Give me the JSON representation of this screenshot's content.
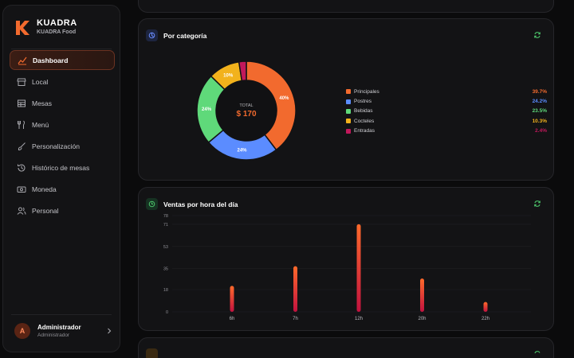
{
  "brand": {
    "title": "KUADRA",
    "subtitle": "KUADRA Food",
    "accent": "#f26a2e"
  },
  "sidebar": {
    "items": [
      {
        "label": "Dashboard",
        "icon": "chart-line-icon",
        "active": true
      },
      {
        "label": "Local",
        "icon": "store-icon",
        "active": false
      },
      {
        "label": "Mesas",
        "icon": "table-icon",
        "active": false
      },
      {
        "label": "Menú",
        "icon": "utensils-icon",
        "active": false
      },
      {
        "label": "Personalización",
        "icon": "brush-icon",
        "active": false
      },
      {
        "label": "Histórico de mesas",
        "icon": "history-icon",
        "active": false
      },
      {
        "label": "Moneda",
        "icon": "money-icon",
        "active": false
      },
      {
        "label": "Personal",
        "icon": "users-icon",
        "active": false
      }
    ]
  },
  "user": {
    "initial": "A",
    "name": "Administrador",
    "role": "Administrador"
  },
  "category_card": {
    "title": "Por categoría",
    "total_label": "TOTAL",
    "total_value": "$ 170"
  },
  "hourly_card": {
    "title": "Ventas por hora del día"
  },
  "chart_data": [
    {
      "type": "pie",
      "title": "Por categoría",
      "slices": [
        {
          "name": "Principales",
          "value": 39.7,
          "color": "#f26a2e",
          "label": "39.7%",
          "slice_label": "40%"
        },
        {
          "name": "Postres",
          "value": 24.2,
          "color": "#5b8cff",
          "label": "24.2%",
          "slice_label": "24%"
        },
        {
          "name": "Bebidas",
          "value": 23.5,
          "color": "#5fd97a",
          "label": "23.5%",
          "slice_label": "24%"
        },
        {
          "name": "Cocteles",
          "value": 10.3,
          "color": "#f2b21c",
          "label": "10.3%",
          "slice_label": "10%"
        },
        {
          "name": "Entradas",
          "value": 2.4,
          "color": "#c2185b",
          "label": "2.4%",
          "slice_label": ""
        }
      ]
    },
    {
      "type": "bar",
      "title": "Ventas por hora del día",
      "categories": [
        "6h",
        "7h",
        "12h",
        "20h",
        "22h"
      ],
      "values": [
        21,
        37,
        71,
        27,
        8
      ],
      "yticks": [
        "0",
        "18",
        "35",
        "53",
        "71",
        "78"
      ],
      "ylim": [
        0,
        78
      ],
      "bar_gradient": [
        "#ff6a2b",
        "#c2123f"
      ]
    }
  ]
}
